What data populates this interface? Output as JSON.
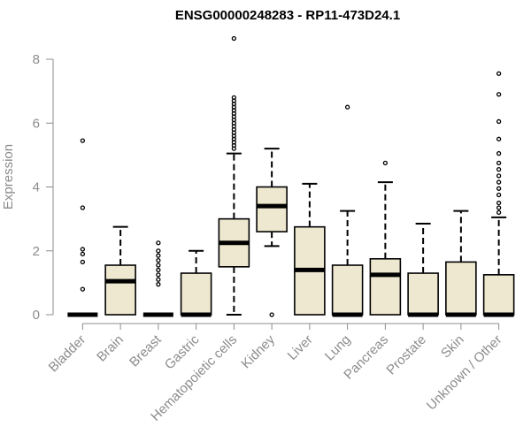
{
  "chart_data": {
    "type": "boxplot",
    "title": "ENSG00000248283 - RP11-473D24.1",
    "ylabel": "Expression",
    "xlabel": "",
    "ylim": [
      0,
      8
    ],
    "yticks": [
      "0",
      "2",
      "4",
      "6",
      "8"
    ],
    "grid": false,
    "colors": {
      "box_fill": "#efe8d1",
      "stroke": "#000000",
      "axis": "#8c8c8c"
    },
    "categories": [
      "Bladder",
      "Brain",
      "Breast",
      "Gastric",
      "Hematopoietic cells",
      "Kidney",
      "Liver",
      "Lung",
      "Pancreas",
      "Prostate",
      "Skin",
      "Unknown / Other"
    ],
    "boxes": [
      {
        "name": "Bladder",
        "min": 0,
        "q1": 0,
        "median": 0,
        "q3": 0,
        "max": 0,
        "outliers": [
          5.45,
          3.35,
          2.05,
          1.9,
          1.65,
          0.8
        ]
      },
      {
        "name": "Brain",
        "min": 0,
        "q1": 0,
        "median": 1.05,
        "q3": 1.55,
        "max": 2.75,
        "outliers": []
      },
      {
        "name": "Breast",
        "min": 0,
        "q1": 0,
        "median": 0,
        "q3": 0,
        "max": 0,
        "outliers": [
          2.25,
          2.0,
          1.85,
          1.7,
          1.55,
          1.4,
          1.25,
          1.1,
          0.95
        ]
      },
      {
        "name": "Gastric",
        "min": 0,
        "q1": 0,
        "median": 0,
        "q3": 1.3,
        "max": 2.0,
        "outliers": []
      },
      {
        "name": "Hematopoietic cells",
        "min": 0,
        "q1": 1.5,
        "median": 2.25,
        "q3": 3.0,
        "max": 5.05,
        "outliers": [
          8.65,
          6.8,
          6.7,
          6.6,
          6.5,
          6.4,
          6.3,
          6.2,
          6.1,
          6.0,
          5.9,
          5.8,
          5.7,
          5.6,
          5.5,
          5.4,
          5.3,
          5.2
        ]
      },
      {
        "name": "Kidney",
        "min": 2.15,
        "q1": 2.6,
        "median": 3.4,
        "q3": 4.0,
        "max": 5.2,
        "outliers": [
          0
        ]
      },
      {
        "name": "Liver",
        "min": 0,
        "q1": 0,
        "median": 1.4,
        "q3": 2.75,
        "max": 4.1,
        "outliers": []
      },
      {
        "name": "Lung",
        "min": 0,
        "q1": 0,
        "median": 0,
        "q3": 1.55,
        "max": 3.25,
        "outliers": [
          6.5
        ]
      },
      {
        "name": "Pancreas",
        "min": 0,
        "q1": 0,
        "median": 1.25,
        "q3": 1.75,
        "max": 4.15,
        "outliers": [
          4.75
        ]
      },
      {
        "name": "Prostate",
        "min": 0,
        "q1": 0,
        "median": 0,
        "q3": 1.3,
        "max": 2.85,
        "outliers": []
      },
      {
        "name": "Skin",
        "min": 0,
        "q1": 0,
        "median": 0,
        "q3": 1.65,
        "max": 3.25,
        "outliers": []
      },
      {
        "name": "Unknown / Other",
        "min": 0,
        "q1": 0,
        "median": 0,
        "q3": 1.25,
        "max": 3.05,
        "outliers": [
          7.55,
          6.9,
          6.05,
          5.5,
          5.05,
          4.75,
          4.55,
          4.35,
          4.15,
          3.95,
          3.75,
          3.5,
          3.35,
          3.2
        ]
      }
    ]
  }
}
